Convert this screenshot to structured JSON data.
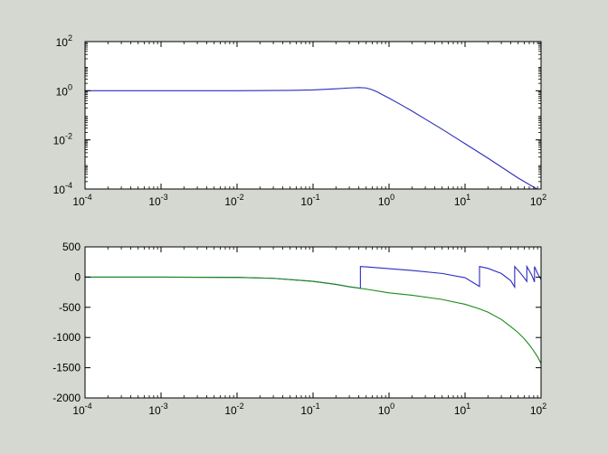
{
  "figure": {
    "background": "#d4d8d0",
    "axes_bg": "#ffffff",
    "colors": {
      "magnitude": "#2b2bc0",
      "phase_wrapped": "#2b2bc0",
      "phase_unwrapped": "#1a8a1a"
    }
  },
  "chart_data": [
    {
      "type": "line",
      "xscale": "log",
      "yscale": "log",
      "xlim": [
        0.0001,
        100
      ],
      "ylim": [
        0.0001,
        100
      ],
      "title": "",
      "xlabel": "",
      "ylabel": "",
      "grid": false,
      "x_ticks": [
        {
          "value": 0.0001,
          "base": "10",
          "exp": "-4"
        },
        {
          "value": 0.001,
          "base": "10",
          "exp": "-3"
        },
        {
          "value": 0.01,
          "base": "10",
          "exp": "-2"
        },
        {
          "value": 0.1,
          "base": "10",
          "exp": "-1"
        },
        {
          "value": 1,
          "base": "10",
          "exp": "0"
        },
        {
          "value": 10,
          "base": "10",
          "exp": "1"
        },
        {
          "value": 100,
          "base": "10",
          "exp": "2"
        }
      ],
      "y_ticks": [
        {
          "value": 0.0001,
          "base": "10",
          "exp": "-4"
        },
        {
          "value": 0.01,
          "base": "10",
          "exp": "-2"
        },
        {
          "value": 1,
          "base": "10",
          "exp": "0"
        },
        {
          "value": 100,
          "base": "10",
          "exp": "2"
        }
      ],
      "series": [
        {
          "x": [
            0.0001,
            0.001,
            0.01,
            0.05,
            0.1,
            0.2,
            0.3,
            0.4,
            0.5,
            0.6,
            0.7,
            0.8,
            1,
            1.5,
            2,
            3,
            5,
            10,
            20,
            50,
            100
          ],
          "y": [
            1,
            1,
            1,
            1.03,
            1.08,
            1.2,
            1.3,
            1.35,
            1.3,
            1.1,
            0.9,
            0.72,
            0.5,
            0.25,
            0.15,
            0.07,
            0.027,
            0.007,
            0.0018,
            0.00028,
            8e-05
          ]
        }
      ]
    },
    {
      "type": "line",
      "xscale": "log",
      "yscale": "linear",
      "xlim": [
        0.0001,
        100
      ],
      "ylim": [
        -2000,
        500
      ],
      "title": "",
      "xlabel": "",
      "ylabel": "",
      "grid": false,
      "x_ticks": [
        {
          "value": 0.0001,
          "base": "10",
          "exp": "-4"
        },
        {
          "value": 0.001,
          "base": "10",
          "exp": "-3"
        },
        {
          "value": 0.01,
          "base": "10",
          "exp": "-2"
        },
        {
          "value": 0.1,
          "base": "10",
          "exp": "-1"
        },
        {
          "value": 1,
          "base": "10",
          "exp": "0"
        },
        {
          "value": 10,
          "base": "10",
          "exp": "1"
        },
        {
          "value": 100,
          "base": "10",
          "exp": "2"
        }
      ],
      "y_ticks": [
        {
          "value": 500,
          "label": "500"
        },
        {
          "value": 0,
          "label": "0"
        },
        {
          "value": -500,
          "label": "-500"
        },
        {
          "value": -1000,
          "label": "-1000"
        },
        {
          "value": -1500,
          "label": "-1500"
        },
        {
          "value": -2000,
          "label": "-2000"
        }
      ],
      "series": [
        {
          "x": [
            0.0001,
            0.001,
            0.01,
            0.03,
            0.1,
            0.2,
            0.3,
            0.42,
            0.42,
            0.5,
            1,
            2,
            5,
            10,
            15.5,
            15.5,
            20,
            30,
            40,
            45,
            45,
            55,
            65,
            65,
            75,
            82,
            82,
            90,
            100
          ],
          "y": [
            0,
            -1,
            -5,
            -20,
            -70,
            -120,
            -160,
            -185,
            175,
            170,
            140,
            110,
            60,
            -10,
            -155,
            175,
            145,
            60,
            -60,
            -165,
            175,
            50,
            -70,
            175,
            40,
            -80,
            175,
            60,
            -40
          ]
        },
        {
          "x": [
            0.0001,
            0.001,
            0.01,
            0.03,
            0.1,
            0.2,
            0.3,
            0.5,
            1,
            2,
            5,
            10,
            15,
            20,
            30,
            40,
            50,
            60,
            70,
            80,
            90,
            100
          ],
          "y": [
            0,
            -1,
            -5,
            -20,
            -70,
            -120,
            -160,
            -200,
            -260,
            -300,
            -370,
            -450,
            -520,
            -580,
            -700,
            -820,
            -920,
            -1020,
            -1120,
            -1220,
            -1320,
            -1430
          ]
        }
      ]
    }
  ]
}
